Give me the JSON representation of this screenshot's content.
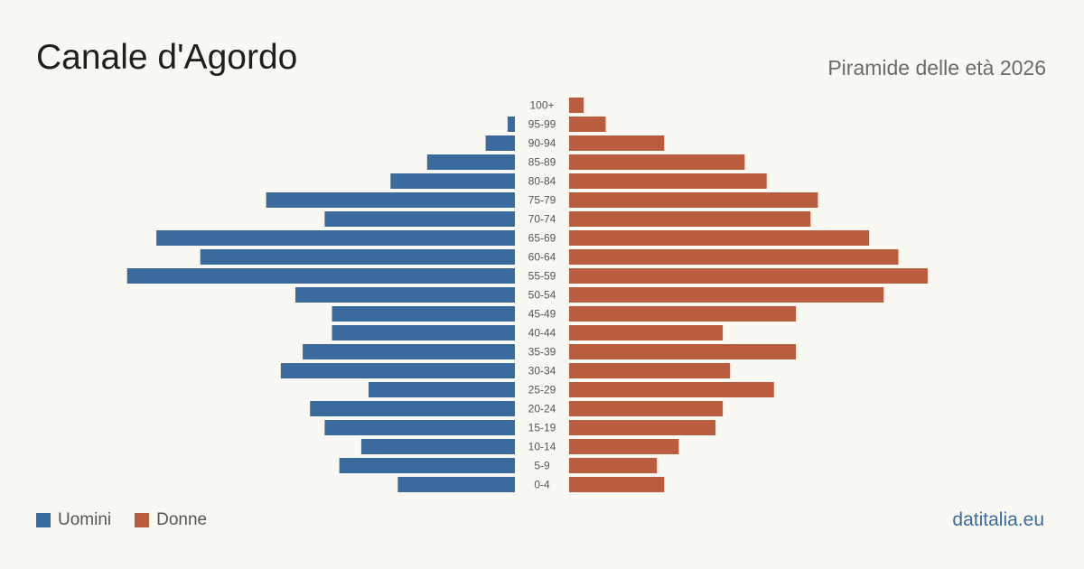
{
  "header": {
    "title": "Canale d'Agordo",
    "subtitle": "Piramide delle età 2026"
  },
  "legend": {
    "men_label": "Uomini",
    "women_label": "Donne"
  },
  "source": "datitalia.eu",
  "colors": {
    "men": "#3a6b9c",
    "women": "#b95d3e",
    "background": "#faf8f3"
  },
  "chart_data": {
    "type": "bar",
    "orientation": "horizontal-pyramid",
    "categories": [
      "100+",
      "95-99",
      "90-94",
      "85-89",
      "80-84",
      "75-79",
      "70-74",
      "65-69",
      "60-64",
      "55-59",
      "50-54",
      "45-49",
      "40-44",
      "35-39",
      "30-34",
      "25-29",
      "20-24",
      "15-19",
      "10-14",
      "5-9",
      "0-4"
    ],
    "series": [
      {
        "name": "Uomini",
        "values": [
          0,
          1,
          4,
          12,
          17,
          34,
          26,
          49,
          43,
          53,
          30,
          25,
          25,
          29,
          32,
          20,
          28,
          26,
          21,
          24,
          16
        ]
      },
      {
        "name": "Donne",
        "values": [
          2,
          5,
          13,
          24,
          27,
          34,
          33,
          41,
          45,
          49,
          43,
          31,
          21,
          31,
          22,
          28,
          21,
          20,
          15,
          12,
          13
        ]
      }
    ],
    "xlabel": "",
    "ylabel": "",
    "grid": false,
    "legend_position": "bottom-left"
  }
}
